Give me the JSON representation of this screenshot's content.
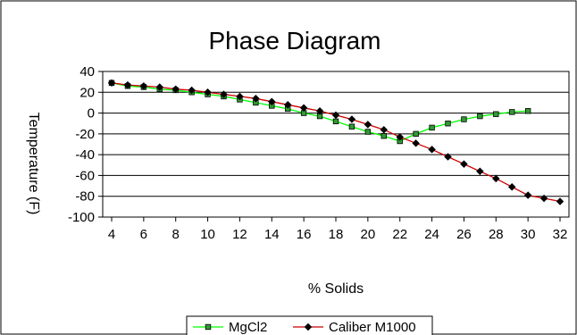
{
  "chart_data": {
    "type": "line",
    "title": "Phase Diagram",
    "xlabel": "% Solids",
    "ylabel": "Temperature (F)",
    "xlim": [
      4,
      32
    ],
    "ylim": [
      -100,
      40
    ],
    "x_ticks": [
      4,
      6,
      8,
      10,
      12,
      14,
      16,
      18,
      20,
      22,
      24,
      26,
      28,
      30,
      32
    ],
    "y_ticks": [
      40,
      20,
      0,
      -20,
      -40,
      -60,
      -80,
      -100
    ],
    "grid": "horizontal",
    "legend_position": "bottom",
    "series": [
      {
        "name": "MgCl2",
        "color": "#00ff00",
        "marker": "square",
        "marker_fill": "#339933",
        "x": [
          4,
          5,
          6,
          7,
          8,
          9,
          10,
          11,
          12,
          13,
          14,
          15,
          16,
          17,
          18,
          19,
          20,
          21,
          22,
          23,
          24,
          25,
          26,
          27,
          28,
          29,
          30
        ],
        "y": [
          29,
          26,
          25,
          23,
          22,
          20,
          18,
          16,
          13,
          10,
          7,
          4,
          0,
          -3,
          -8,
          -13,
          -18,
          -22,
          -27,
          -20,
          -14,
          -10,
          -6,
          -3,
          -1,
          1,
          2
        ]
      },
      {
        "name": "Caliber M1000",
        "color": "#cc0000",
        "marker": "diamond",
        "marker_fill": "#000000",
        "x": [
          4,
          5,
          6,
          7,
          8,
          9,
          10,
          11,
          12,
          13,
          14,
          15,
          16,
          17,
          18,
          19,
          20,
          21,
          22,
          23,
          24,
          25,
          26,
          27,
          28,
          29,
          30,
          31,
          32
        ],
        "y": [
          29,
          27,
          26,
          25,
          23,
          22,
          20,
          18,
          16,
          14,
          11,
          8,
          5,
          2,
          -2,
          -6,
          -11,
          -16,
          -23,
          -29,
          -35,
          -42,
          -49,
          -56,
          -63,
          -71,
          -79,
          -82,
          -85
        ]
      }
    ]
  }
}
